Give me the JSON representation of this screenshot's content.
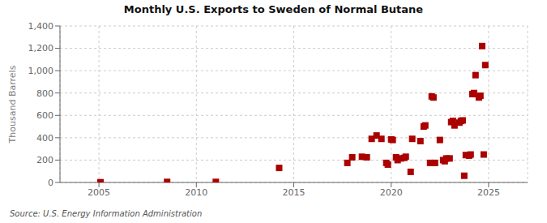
{
  "chart_data": {
    "type": "scatter",
    "title": "Monthly U.S. Exports to Sweden of Normal Butane",
    "y_label": "Thousand Barrels",
    "annotations": [
      "Source: U.S. Energy Information Administration"
    ],
    "color": "#aa0000",
    "marker": "square",
    "grid": true,
    "xlim": [
      2003.0,
      2027.0
    ],
    "xticks": [
      2005,
      2010,
      2015,
      2020,
      2025
    ],
    "ylim": [
      0,
      1400
    ],
    "yticks": [
      0,
      200,
      400,
      600,
      800,
      {
        "value": 1000,
        "label": "1,000"
      },
      {
        "value": 1200,
        "label": "1,200"
      },
      {
        "value": 1400,
        "label": "1,400"
      }
    ],
    "x": [
      2005.08,
      2008.5,
      2011.0,
      2014.25,
      2017.75,
      2018.0,
      2018.5,
      2018.75,
      2019.0,
      2019.25,
      2019.5,
      2019.75,
      2019.83,
      2020.0,
      2020.08,
      2020.25,
      2020.33,
      2020.5,
      2020.67,
      2020.75,
      2021.0,
      2021.08,
      2021.5,
      2021.67,
      2021.75,
      2022.0,
      2022.08,
      2022.17,
      2022.25,
      2022.5,
      2022.67,
      2022.75,
      2022.83,
      2023.0,
      2023.08,
      2023.17,
      2023.25,
      2023.5,
      2023.58,
      2023.67,
      2023.75,
      2023.83,
      2024.0,
      2024.08,
      2024.17,
      2024.25,
      2024.33,
      2024.5,
      2024.58,
      2024.67,
      2024.75,
      2024.83
    ],
    "values": [
      2,
      5,
      5,
      130,
      175,
      225,
      230,
      225,
      390,
      420,
      390,
      175,
      160,
      385,
      380,
      225,
      200,
      215,
      220,
      230,
      95,
      390,
      370,
      500,
      510,
      175,
      770,
      760,
      175,
      380,
      200,
      190,
      215,
      215,
      540,
      550,
      510,
      535,
      550,
      555,
      60,
      245,
      240,
      250,
      790,
      800,
      960,
      760,
      775,
      1220,
      250,
      1050
    ]
  }
}
